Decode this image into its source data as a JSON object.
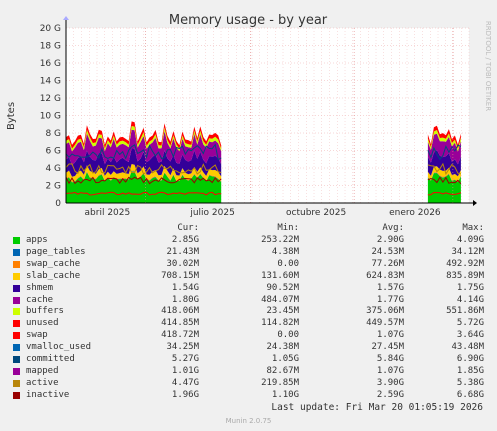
{
  "chart_data": {
    "type": "area",
    "title": "Memory usage - by year",
    "ylabel": "Bytes",
    "side_label": "RRDTOOL / TOBI OETIKER",
    "y_ticks": [
      "0",
      "2 G",
      "4 G",
      "6 G",
      "8 G",
      "10 G",
      "12 G",
      "14 G",
      "16 G",
      "18 G",
      "20 G"
    ],
    "y_tick_values": [
      0,
      2,
      4,
      6,
      8,
      10,
      12,
      14,
      16,
      18,
      20
    ],
    "ylim": [
      0,
      20
    ],
    "x_ticks": [
      "abril 2025",
      "julio 2025",
      "octubre 2025",
      "enero 2026"
    ],
    "x_tick_pos": [
      0.197,
      0.458,
      0.715,
      0.96
    ],
    "data_segments": [
      [
        0.0,
        0.385
      ],
      [
        0.898,
        0.98
      ]
    ],
    "stack_series": [
      {
        "name": "apps",
        "color": "#00cc00",
        "level": 2.9
      },
      {
        "name": "page_tables",
        "color": "#0066b3",
        "level": 0.025
      },
      {
        "name": "swap_cache",
        "color": "#ff8000",
        "level": 0.077
      },
      {
        "name": "slab_cache",
        "color": "#ffcc00",
        "level": 0.62
      },
      {
        "name": "shmem",
        "color": "#330099",
        "level": 1.57
      },
      {
        "name": "cache",
        "color": "#990099",
        "level": 1.77
      },
      {
        "name": "buffers",
        "color": "#ccff00",
        "level": 0.37
      },
      {
        "name": "unused",
        "color": "#ff0000",
        "level": 0.45
      }
    ],
    "line_series": [
      {
        "name": "swap",
        "color": "#ff0000",
        "level": 1.07
      },
      {
        "name": "committed",
        "color": "#00487d",
        "level": 5.84
      },
      {
        "name": "active",
        "color": "#b8860b",
        "level": 3.9
      },
      {
        "name": "inactive",
        "color": "#990000",
        "level": 2.59
      }
    ]
  },
  "legend": {
    "headers": {
      "cur": "Cur:",
      "min": "Min:",
      "avg": "Avg:",
      "max": "Max:"
    },
    "rows": [
      {
        "name": "apps",
        "color": "#00cc00",
        "cur": "2.85G",
        "min": "253.22M",
        "avg": "2.90G",
        "max": "4.09G"
      },
      {
        "name": "page_tables",
        "color": "#0066b3",
        "cur": "21.43M",
        "min": "4.38M",
        "avg": "24.53M",
        "max": "34.12M"
      },
      {
        "name": "swap_cache",
        "color": "#ff8000",
        "cur": "30.02M",
        "min": "0.00",
        "avg": "77.26M",
        "max": "492.92M"
      },
      {
        "name": "slab_cache",
        "color": "#ffcc00",
        "cur": "708.15M",
        "min": "131.60M",
        "avg": "624.83M",
        "max": "835.89M"
      },
      {
        "name": "shmem",
        "color": "#330099",
        "cur": "1.54G",
        "min": "90.52M",
        "avg": "1.57G",
        "max": "1.75G"
      },
      {
        "name": "cache",
        "color": "#990099",
        "cur": "1.80G",
        "min": "484.07M",
        "avg": "1.77G",
        "max": "4.14G"
      },
      {
        "name": "buffers",
        "color": "#ccff00",
        "cur": "418.06M",
        "min": "23.45M",
        "avg": "375.06M",
        "max": "551.86M"
      },
      {
        "name": "unused",
        "color": "#ff0000",
        "cur": "414.85M",
        "min": "114.82M",
        "avg": "449.57M",
        "max": "5.72G"
      },
      {
        "name": "swap",
        "color": "#ff0000",
        "cur": "418.72M",
        "min": "0.00",
        "avg": "1.07G",
        "max": "3.64G"
      },
      {
        "name": "vmalloc_used",
        "color": "#0066b3",
        "cur": "34.25M",
        "min": "24.38M",
        "avg": "27.45M",
        "max": "43.48M"
      },
      {
        "name": "committed",
        "color": "#00487d",
        "cur": "5.27G",
        "min": "1.05G",
        "avg": "5.84G",
        "max": "6.90G"
      },
      {
        "name": "mapped",
        "color": "#990099",
        "cur": "1.01G",
        "min": "82.67M",
        "avg": "1.07G",
        "max": "1.85G"
      },
      {
        "name": "active",
        "color": "#b8860b",
        "cur": "4.47G",
        "min": "219.85M",
        "avg": "3.90G",
        "max": "5.38G"
      },
      {
        "name": "inactive",
        "color": "#990000",
        "cur": "1.96G",
        "min": "1.10G",
        "avg": "2.59G",
        "max": "6.68G"
      }
    ]
  },
  "footer": {
    "last_update": "Last update: Fri Mar 20 01:05:19 2026",
    "version": "Munin 2.0.75"
  }
}
